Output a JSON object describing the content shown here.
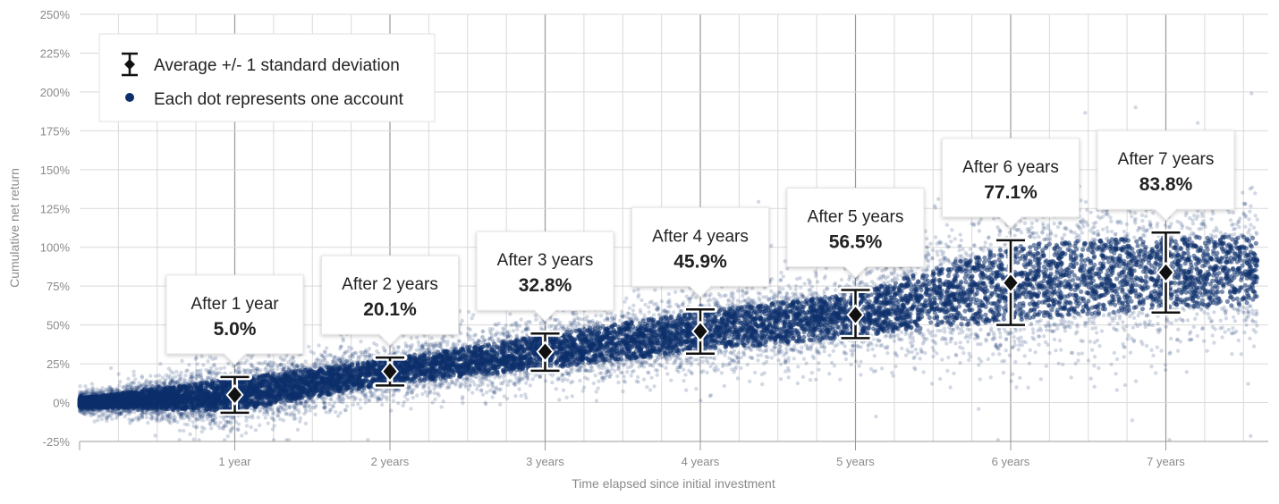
{
  "chart_data": {
    "type": "scatter",
    "xlabel": "Time elapsed since initial investment",
    "ylabel": "Cumulative net return",
    "xlim": [
      0,
      7.65
    ],
    "ylim": [
      -25,
      250
    ],
    "x_ticks": [
      {
        "value": 1,
        "label": "1 year"
      },
      {
        "value": 2,
        "label": "2 years"
      },
      {
        "value": 3,
        "label": "3 years"
      },
      {
        "value": 4,
        "label": "4 years"
      },
      {
        "value": 5,
        "label": "5 years"
      },
      {
        "value": 6,
        "label": "6 years"
      },
      {
        "value": 7,
        "label": "7 years"
      }
    ],
    "y_ticks": [
      {
        "value": 250,
        "label": "250%"
      },
      {
        "value": 225,
        "label": "225%"
      },
      {
        "value": 200,
        "label": "200%"
      },
      {
        "value": 175,
        "label": "175%"
      },
      {
        "value": 150,
        "label": "150%"
      },
      {
        "value": 125,
        "label": "125%"
      },
      {
        "value": 100,
        "label": "100%"
      },
      {
        "value": 75,
        "label": "75%"
      },
      {
        "value": 50,
        "label": "50%"
      },
      {
        "value": 25,
        "label": "25%"
      },
      {
        "value": 0,
        "label": "0%"
      },
      {
        "value": -25,
        "label": "-25%"
      }
    ],
    "grid": true,
    "legend": {
      "position": "top-left",
      "entries": [
        {
          "label": "Average +/- 1 standard deviation",
          "marker": "errorbar-diamond"
        },
        {
          "label": "Each dot represents one account",
          "marker": "dot"
        }
      ]
    },
    "colors": {
      "scatter": "#0d2f6b",
      "errorbar": "#111111",
      "grid": "#d9d9d9",
      "grid_major": "#9a9a9a"
    },
    "series": [
      {
        "name": "Average +/- 1 standard deviation",
        "points": [
          {
            "x": 1,
            "mean": 5.0,
            "low": -6.5,
            "high": 16.5,
            "title": "After 1 year",
            "value_label": "5.0%"
          },
          {
            "x": 2,
            "mean": 20.1,
            "low": 11.0,
            "high": 29.0,
            "title": "After 2 years",
            "value_label": "20.1%"
          },
          {
            "x": 3,
            "mean": 32.8,
            "low": 20.5,
            "high": 44.5,
            "title": "After 3 years",
            "value_label": "32.8%"
          },
          {
            "x": 4,
            "mean": 45.9,
            "low": 31.5,
            "high": 60.0,
            "title": "After 4 years",
            "value_label": "45.9%"
          },
          {
            "x": 5,
            "mean": 56.5,
            "low": 41.5,
            "high": 72.5,
            "title": "After 5 years",
            "value_label": "56.5%"
          },
          {
            "x": 6,
            "mean": 77.1,
            "low": 50.0,
            "high": 104.5,
            "title": "After 6 years",
            "value_label": "77.1%"
          },
          {
            "x": 7,
            "mean": 83.8,
            "low": 58.0,
            "high": 109.5,
            "title": "After 7 years",
            "value_label": "83.8%"
          }
        ]
      }
    ]
  }
}
